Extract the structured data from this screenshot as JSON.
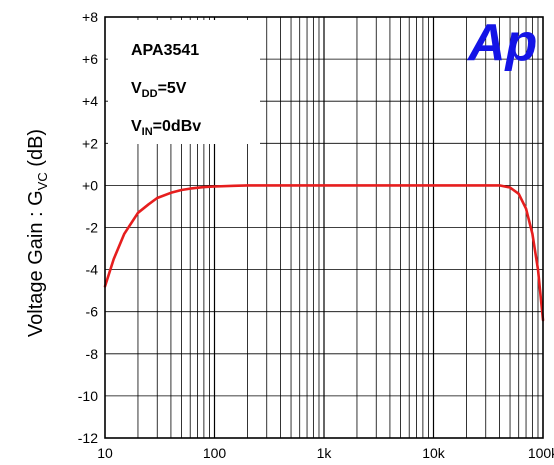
{
  "chart_data": {
    "type": "line",
    "xlabel": "",
    "ylabel_main": "Voltage Gain : G",
    "ylabel_sub": "VC",
    "ylabel_unit": " (dB)",
    "xscale": "log",
    "xlim": [
      10,
      100000
    ],
    "ylim": [
      -12,
      8
    ],
    "grid": true,
    "x_ticks": [
      {
        "value": 10,
        "label": "10"
      },
      {
        "value": 100,
        "label": "100"
      },
      {
        "value": 1000,
        "label": "1k"
      },
      {
        "value": 10000,
        "label": "10k"
      },
      {
        "value": 100000,
        "label": "100k"
      }
    ],
    "y_ticks": [
      {
        "value": 8,
        "label": "+8"
      },
      {
        "value": 6,
        "label": "+6"
      },
      {
        "value": 4,
        "label": "+4"
      },
      {
        "value": 2,
        "label": "+2"
      },
      {
        "value": 0,
        "label": "+0"
      },
      {
        "value": -2,
        "label": "-2"
      },
      {
        "value": -4,
        "label": "-4"
      },
      {
        "value": -6,
        "label": "-6"
      },
      {
        "value": -8,
        "label": "-8"
      },
      {
        "value": -10,
        "label": "-10"
      },
      {
        "value": -12,
        "label": "-12"
      }
    ],
    "annotations": [
      {
        "main": "APA3541",
        "sub": "",
        "rest": ""
      },
      {
        "main": "V",
        "sub": "DD",
        "rest": "=5V"
      },
      {
        "main": "V",
        "sub": "IN",
        "rest": "=0dBv"
      }
    ],
    "logo": "Ap",
    "series": [
      {
        "color": "#e61e1e",
        "x": [
          10,
          12,
          15,
          20,
          25,
          30,
          40,
          50,
          60,
          80,
          100,
          150,
          200,
          500,
          1000,
          5000,
          10000,
          20000,
          40000,
          50000,
          60000,
          70000,
          80000,
          90000,
          100000
        ],
        "y": [
          -4.8,
          -3.5,
          -2.3,
          -1.3,
          -0.9,
          -0.6,
          -0.35,
          -0.22,
          -0.15,
          -0.08,
          -0.05,
          -0.02,
          0,
          0,
          0,
          0,
          0,
          0,
          0,
          -0.1,
          -0.4,
          -1.1,
          -2.3,
          -4.0,
          -6.4
        ]
      }
    ]
  }
}
